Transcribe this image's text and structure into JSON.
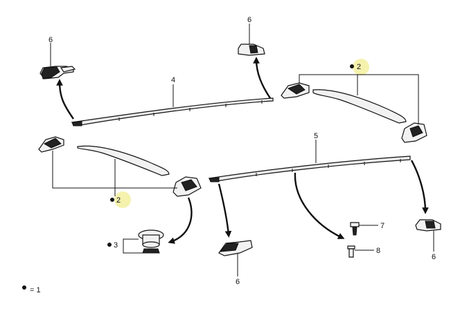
{
  "callouts": {
    "c6_top_left": "6",
    "c6_top_mid": "6",
    "c4": "4",
    "c2_right": "2",
    "c2_left": "2",
    "c5": "5",
    "c3": "3",
    "c7": "7",
    "c8": "8",
    "c6_bottom_mid": "6",
    "c6_bottom_right": "6"
  },
  "legend": {
    "text": "= 1"
  },
  "colors": {
    "highlight": "#f3f0a0",
    "line": "#111111"
  }
}
